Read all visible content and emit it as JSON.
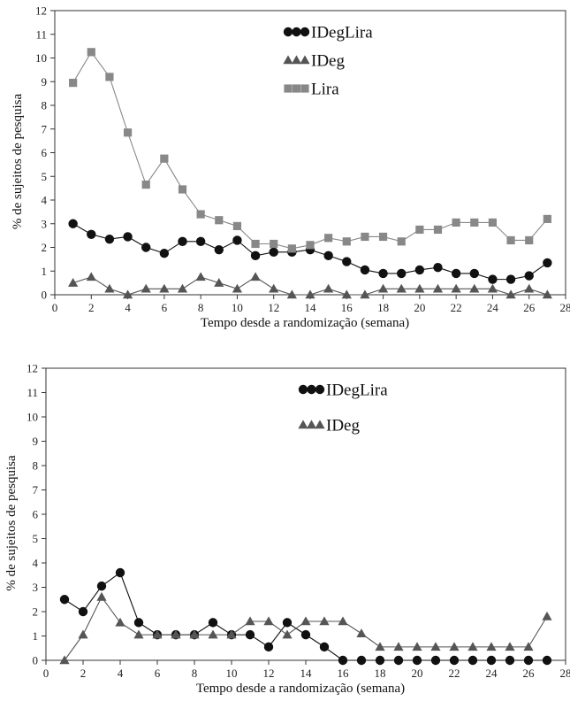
{
  "chart_data": [
    {
      "type": "line",
      "xlabel": "Tempo desde a randomização (semana)",
      "ylabel": "% de sujeitos de pesquisa",
      "xlim": [
        0,
        28
      ],
      "ylim": [
        0,
        12
      ],
      "xticks": [
        0,
        2,
        4,
        6,
        8,
        10,
        12,
        14,
        16,
        18,
        20,
        22,
        24,
        26,
        28
      ],
      "yticks": [
        0,
        1,
        2,
        3,
        4,
        5,
        6,
        7,
        8,
        9,
        10,
        11,
        12
      ],
      "grid": false,
      "legend_position": "top-right",
      "x": [
        1,
        2,
        3,
        4,
        5,
        6,
        7,
        8,
        9,
        10,
        11,
        12,
        13,
        14,
        15,
        16,
        17,
        18,
        19,
        20,
        21,
        22,
        23,
        24,
        25,
        26,
        27
      ],
      "series": [
        {
          "name": "IDegLira",
          "marker": "circle",
          "color": "#111111",
          "values": [
            3.0,
            2.55,
            2.35,
            2.45,
            2.0,
            1.75,
            2.25,
            2.25,
            1.9,
            2.3,
            1.65,
            1.8,
            1.8,
            1.9,
            1.65,
            1.4,
            1.05,
            0.9,
            0.9,
            1.05,
            1.15,
            0.9,
            0.9,
            0.65,
            0.65,
            0.8,
            1.35
          ]
        },
        {
          "name": "IDeg",
          "marker": "triangle",
          "color": "#555555",
          "values": [
            0.5,
            0.75,
            0.25,
            0.0,
            0.25,
            0.25,
            0.25,
            0.75,
            0.5,
            0.25,
            0.75,
            0.25,
            0.0,
            0.0,
            0.25,
            0.0,
            0.0,
            0.25,
            0.25,
            0.25,
            0.25,
            0.25,
            0.25,
            0.25,
            0.0,
            0.25,
            0.0
          ]
        },
        {
          "name": "Lira",
          "marker": "square",
          "color": "#888888",
          "values": [
            8.95,
            10.25,
            9.2,
            6.85,
            4.65,
            5.75,
            4.45,
            3.4,
            3.15,
            2.9,
            2.15,
            2.15,
            1.95,
            2.1,
            2.4,
            2.25,
            2.45,
            2.45,
            2.25,
            2.75,
            2.75,
            3.05,
            3.05,
            3.05,
            2.3,
            2.3,
            3.2
          ]
        }
      ]
    },
    {
      "type": "line",
      "xlabel": "Tempo desde a randomização (semana)",
      "ylabel": "% de sujeitos de pesquisa",
      "xlim": [
        0,
        28
      ],
      "ylim": [
        0,
        12
      ],
      "xticks": [
        0,
        2,
        4,
        6,
        8,
        10,
        12,
        14,
        16,
        18,
        20,
        22,
        24,
        26,
        28
      ],
      "yticks": [
        0,
        1,
        2,
        3,
        4,
        5,
        6,
        7,
        8,
        9,
        10,
        11,
        12
      ],
      "grid": false,
      "legend_position": "top-right",
      "x": [
        1,
        2,
        3,
        4,
        5,
        6,
        7,
        8,
        9,
        10,
        11,
        12,
        13,
        14,
        15,
        16,
        17,
        18,
        19,
        20,
        21,
        22,
        23,
        24,
        25,
        26,
        27
      ],
      "series": [
        {
          "name": "IDegLira",
          "marker": "circle",
          "color": "#111111",
          "values": [
            2.5,
            2.0,
            3.05,
            3.6,
            1.55,
            1.05,
            1.05,
            1.05,
            1.55,
            1.05,
            1.05,
            0.55,
            1.55,
            1.05,
            0.55,
            0.0,
            0.0,
            0.0,
            0.0,
            0.0,
            0.0,
            0.0,
            0.0,
            0.0,
            0.0,
            0.0,
            0.0
          ]
        },
        {
          "name": "IDeg",
          "marker": "triangle",
          "color": "#555555",
          "values": [
            0.0,
            1.05,
            2.6,
            1.55,
            1.05,
            1.05,
            1.05,
            1.05,
            1.05,
            1.05,
            1.6,
            1.6,
            1.05,
            1.6,
            1.6,
            1.6,
            1.1,
            0.55,
            0.55,
            0.55,
            0.55,
            0.55,
            0.55,
            0.55,
            0.55,
            0.55,
            1.8
          ]
        }
      ]
    }
  ]
}
